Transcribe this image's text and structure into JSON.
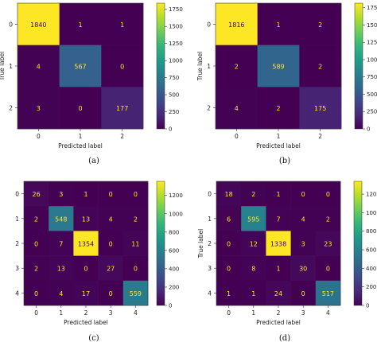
{
  "figure_captions": [
    "(a)",
    "(b)",
    "(c)",
    "(d)"
  ],
  "colormap_stops": [
    "#440154",
    "#482878",
    "#3e4989",
    "#31688e",
    "#26828e",
    "#1f9e89",
    "#35b779",
    "#6ece58",
    "#b5de2b",
    "#fde725"
  ],
  "text_colors": {
    "on_dark": "#fde725",
    "on_light": "#440154",
    "axis": "#222222"
  },
  "chart_data": [
    {
      "type": "heatmap",
      "caption": "(a)",
      "xlabel": "Predicted label",
      "ylabel": "True label",
      "x_ticks": [
        "0",
        "1",
        "2"
      ],
      "y_ticks": [
        "0",
        "1",
        "2"
      ],
      "matrix": [
        [
          1840,
          1,
          1
        ],
        [
          4,
          567,
          0
        ],
        [
          3,
          0,
          177
        ]
      ],
      "color_range": [
        0,
        1840
      ],
      "colorbar_ticks": [
        "1750",
        "1500",
        "1250",
        "1000",
        "750",
        "500",
        "250",
        "0"
      ],
      "colorbar_values": [
        1750,
        1500,
        1250,
        1000,
        750,
        500,
        250,
        0
      ]
    },
    {
      "type": "heatmap",
      "caption": "(b)",
      "xlabel": "Predicted label",
      "ylabel": "True label",
      "x_ticks": [
        "0",
        "1",
        "2"
      ],
      "y_ticks": [
        "0",
        "1",
        "2"
      ],
      "matrix": [
        [
          1816,
          1,
          2
        ],
        [
          2,
          589,
          2
        ],
        [
          4,
          2,
          175
        ]
      ],
      "color_range": [
        0,
        1816
      ],
      "colorbar_ticks": [
        "1750",
        "1500",
        "1250",
        "1000",
        "750",
        "500",
        "250",
        "0"
      ],
      "colorbar_values": [
        1750,
        1500,
        1250,
        1000,
        750,
        500,
        250,
        0
      ]
    },
    {
      "type": "heatmap",
      "caption": "(c)",
      "xlabel": "Predicted label",
      "ylabel": "",
      "x_ticks": [
        "0",
        "1",
        "2",
        "3",
        "4"
      ],
      "y_ticks": [
        "0",
        "1",
        "2",
        "3",
        "4"
      ],
      "matrix": [
        [
          26,
          3,
          1,
          0,
          0
        ],
        [
          2,
          548,
          13,
          4,
          2
        ],
        [
          0,
          7,
          1354,
          0,
          11
        ],
        [
          2,
          13,
          0,
          27,
          0
        ],
        [
          0,
          4,
          17,
          0,
          559
        ]
      ],
      "color_range": [
        0,
        1354
      ],
      "colorbar_ticks": [
        "1200",
        "1000",
        "800",
        "600",
        "400",
        "200",
        "0"
      ],
      "colorbar_values": [
        1200,
        1000,
        800,
        600,
        400,
        200,
        0
      ]
    },
    {
      "type": "heatmap",
      "caption": "(d)",
      "xlabel": "Predicted label",
      "ylabel": "True label",
      "x_ticks": [
        "0",
        "1",
        "2",
        "3",
        "4"
      ],
      "y_ticks": [
        "0",
        "1",
        "2",
        "3",
        "4"
      ],
      "matrix": [
        [
          18,
          2,
          1,
          0,
          0
        ],
        [
          6,
          595,
          7,
          4,
          2
        ],
        [
          0,
          12,
          1338,
          3,
          23
        ],
        [
          0,
          8,
          1,
          30,
          0
        ],
        [
          1,
          1,
          24,
          0,
          517
        ]
      ],
      "color_range": [
        0,
        1338
      ],
      "colorbar_ticks": [
        "1200",
        "1000",
        "800",
        "600",
        "400",
        "200",
        "0"
      ],
      "colorbar_values": [
        1200,
        1000,
        800,
        600,
        400,
        200,
        0
      ]
    }
  ]
}
